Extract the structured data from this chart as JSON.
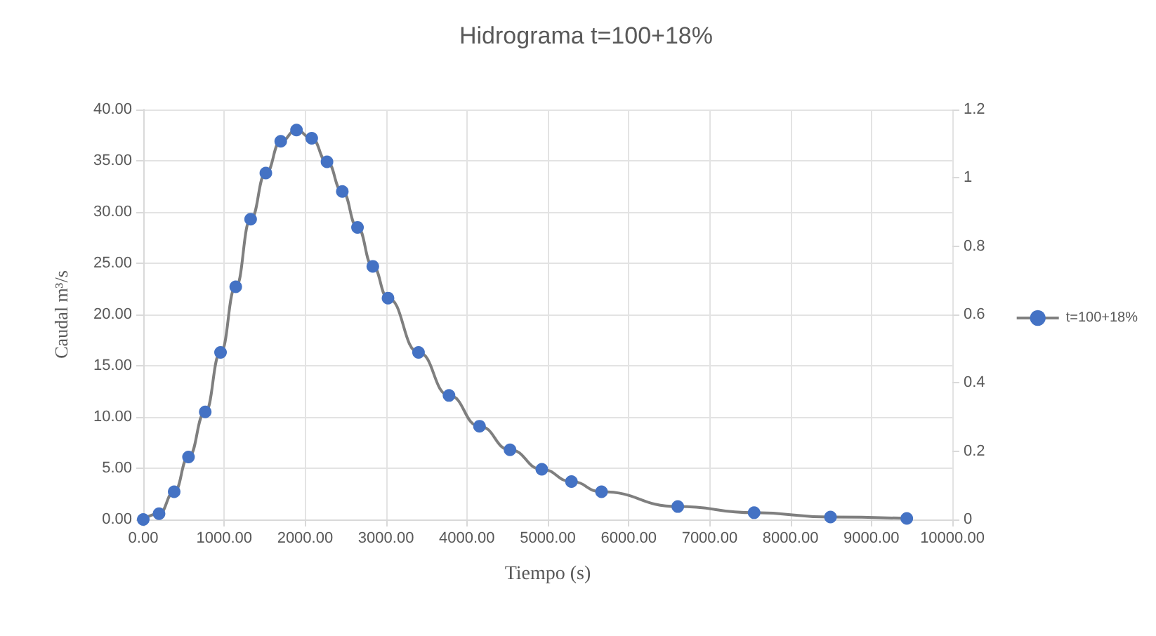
{
  "chart_data": {
    "type": "line",
    "title": "Hidrograma t=100+18%",
    "xlabel": "Tiempo (s)",
    "ylabel": "Caudal m³/s",
    "series": [
      {
        "name": "t=100+18%",
        "color": "#4472c4",
        "x": [
          0,
          195,
          382,
          559,
          766,
          955,
          1143,
          1327,
          1515,
          1699,
          1894,
          2082,
          2271,
          2460,
          2648,
          2837,
          3025,
          3402,
          3779,
          4156,
          4533,
          4926,
          5292,
          5664,
          6607,
          7550,
          8494,
          9437
        ],
        "values": [
          0,
          0.56,
          2.7,
          6.1,
          10.5,
          16.3,
          22.7,
          29.3,
          33.8,
          36.9,
          38.0,
          37.2,
          34.9,
          32.0,
          28.5,
          24.7,
          21.6,
          16.3,
          12.1,
          9.1,
          6.8,
          4.9,
          3.7,
          2.7,
          1.26,
          0.66,
          0.24,
          0.1
        ]
      }
    ],
    "xlim": [
      0,
      10000
    ],
    "xticks": [
      {
        "value": 0,
        "label": "0.00"
      },
      {
        "value": 1000,
        "label": "1000.00"
      },
      {
        "value": 2000,
        "label": "2000.00"
      },
      {
        "value": 3000,
        "label": "3000.00"
      },
      {
        "value": 4000,
        "label": "4000.00"
      },
      {
        "value": 5000,
        "label": "5000.00"
      },
      {
        "value": 6000,
        "label": "6000.00"
      },
      {
        "value": 7000,
        "label": "7000.00"
      },
      {
        "value": 8000,
        "label": "8000.00"
      },
      {
        "value": 9000,
        "label": "9000.00"
      },
      {
        "value": 10000,
        "label": "10000.00"
      }
    ],
    "ylim": [
      0,
      40
    ],
    "yticks": [
      {
        "value": 0,
        "label": "0.00"
      },
      {
        "value": 5,
        "label": "5.00"
      },
      {
        "value": 10,
        "label": "10.00"
      },
      {
        "value": 15,
        "label": "15.00"
      },
      {
        "value": 20,
        "label": "20.00"
      },
      {
        "value": 25,
        "label": "25.00"
      },
      {
        "value": 30,
        "label": "30.00"
      },
      {
        "value": 35,
        "label": "35.00"
      },
      {
        "value": 40,
        "label": "40.00"
      }
    ],
    "y2lim": [
      0,
      1.2
    ],
    "y2ticks": [
      0,
      0.2,
      0.4,
      0.6,
      0.8,
      1,
      1.2
    ],
    "grid": true,
    "legend": "right",
    "marker": "circle",
    "line_style": "solid"
  }
}
